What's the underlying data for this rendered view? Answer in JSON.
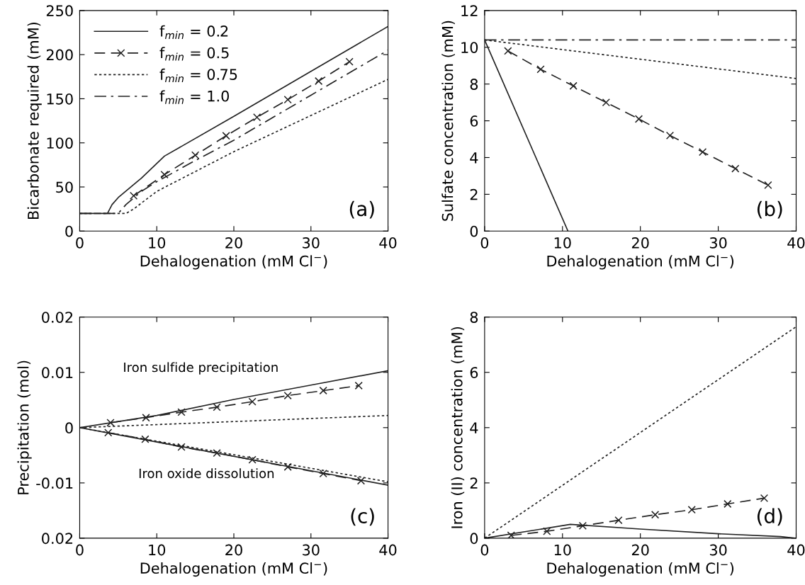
{
  "chart_data": [
    {
      "type": "line",
      "xlabel": "Dehalogenation (mM Cl$^{−}$)",
      "ylabel": "Bicarbonate required (mM)",
      "xlim": [
        0,
        40
      ],
      "ylim": [
        0,
        250
      ],
      "xticks": [
        0,
        10,
        20,
        30,
        40
      ],
      "yticks": [
        0,
        50,
        100,
        150,
        200,
        250
      ],
      "legend": "top left",
      "annotations": [
        "(a)"
      ],
      "series": [
        {
          "name": "f$_{min}$ = 0.2",
          "color": "#222222",
          "line_style": "solid",
          "marker": "none",
          "x": [
            0,
            3.6,
            4.2,
            5,
            8,
            11,
            20,
            30,
            40
          ],
          "values": [
            20,
            20,
            30,
            38,
            60,
            85,
            130,
            181,
            232
          ]
        },
        {
          "name": "f$_{min}$ = 0.5",
          "color": "#222222",
          "line_style": "dashed",
          "marker": "cross",
          "x": [
            7,
            11,
            15,
            19,
            23,
            27,
            31,
            35
          ],
          "values": [
            40,
            64,
            86,
            108,
            129,
            149,
            170,
            192
          ]
        },
        {
          "name": "f$_{min}$ = 0.75",
          "color": "#222222",
          "line_style": "dotted",
          "marker": "none",
          "x": [
            0,
            6,
            7,
            10,
            20,
            30,
            40
          ],
          "values": [
            20,
            20,
            25,
            45,
            90,
            131,
            172
          ]
        },
        {
          "name": "f$_{min}$ = 1.0",
          "color": "#222222",
          "line_style": "dashdot",
          "marker": "none",
          "x": [
            0,
            5,
            6,
            8,
            10,
            15,
            20,
            30,
            40
          ],
          "values": [
            20,
            20,
            30,
            45,
            56,
            80,
            103,
            154,
            205
          ]
        }
      ]
    },
    {
      "type": "line",
      "xlabel": "Dehalogenation (mM Cl$^{−}$)",
      "ylabel": "Sulfate concentration (mM)",
      "xlim": [
        0,
        40
      ],
      "ylim": [
        0,
        12
      ],
      "xticks": [
        0,
        10,
        20,
        30,
        40
      ],
      "yticks": [
        0,
        2,
        4,
        6,
        8,
        10,
        12
      ],
      "annotations": [
        "(b)"
      ],
      "series": [
        {
          "color": "#222222",
          "line_style": "solid",
          "marker": "none",
          "x": [
            0,
            10.7
          ],
          "values": [
            10.4,
            0
          ]
        },
        {
          "color": "#222222",
          "line_style": "dashed",
          "marker": "cross",
          "x": [
            3,
            7.2,
            11.4,
            15.6,
            19.8,
            23.8,
            28,
            32.2,
            36.4
          ],
          "values": [
            9.8,
            8.8,
            7.9,
            7.0,
            6.1,
            5.2,
            4.3,
            3.4,
            2.5
          ]
        },
        {
          "color": "#222222",
          "line_style": "dotted",
          "marker": "none",
          "x": [
            0,
            40
          ],
          "values": [
            10.4,
            8.3
          ]
        },
        {
          "color": "#222222",
          "line_style": "dashdot",
          "marker": "none",
          "x": [
            0,
            40
          ],
          "values": [
            10.4,
            10.4
          ]
        }
      ]
    },
    {
      "type": "line",
      "xlabel": "Dehalogenation (mM Cl$^{−}$)",
      "ylabel": "Precipitation (mol)",
      "xlim": [
        0,
        40
      ],
      "ylim": [
        -0.02,
        0.02
      ],
      "xticks": [
        0,
        10,
        20,
        30,
        40
      ],
      "yticks": [
        {
          "value": -0.02,
          "label": "0.02"
        },
        -0.01,
        0,
        0.01,
        0.02
      ],
      "annotations": [
        "(c)",
        "Iron sulfide precipitation",
        "Iron oxide dissolution"
      ],
      "series": [
        {
          "color": "#222222",
          "line_style": "solid",
          "marker": "none",
          "x": [
            0,
            10,
            20,
            30,
            40
          ],
          "values": [
            0,
            0.0022,
            0.0051,
            0.0077,
            0.0103
          ]
        },
        {
          "color": "#222222",
          "line_style": "dashed",
          "marker": "cross",
          "x": [
            4,
            8.6,
            13.2,
            17.8,
            22.4,
            27,
            31.6,
            36.2
          ],
          "values": [
            0.0009,
            0.0018,
            0.0028,
            0.0037,
            0.0047,
            0.0058,
            0.0067,
            0.0076
          ]
        },
        {
          "color": "#222222",
          "line_style": "dotted",
          "marker": "none",
          "x": [
            0,
            40
          ],
          "values": [
            0,
            0.0022
          ]
        },
        {
          "color": "#222222",
          "line_style": "solid",
          "marker": "none",
          "x": [
            0,
            40
          ],
          "values": [
            0,
            -0.0104
          ]
        },
        {
          "color": "#222222",
          "line_style": "dashed",
          "marker": "cross",
          "x": [
            3.7,
            8.5,
            13.2,
            17.8,
            22.4,
            27,
            31.6,
            36.5
          ],
          "values": [
            -0.0009,
            -0.0021,
            -0.0035,
            -0.0046,
            -0.0058,
            -0.0071,
            -0.0083,
            -0.0096
          ]
        },
        {
          "color": "#222222",
          "line_style": "dotted",
          "marker": "none",
          "x": [
            0,
            40
          ],
          "values": [
            0,
            -0.0098
          ]
        }
      ]
    },
    {
      "type": "line",
      "xlabel": "Dehalogenation (mM Cl$^{−}$)",
      "ylabel": "Iron (II) concentration (mM)",
      "xlim": [
        0,
        40
      ],
      "ylim": [
        0,
        8
      ],
      "xticks": [
        0,
        10,
        20,
        30,
        40
      ],
      "yticks": [
        0,
        2,
        4,
        6,
        8
      ],
      "annotations": [
        "(d)"
      ],
      "series": [
        {
          "color": "#222222",
          "line_style": "solid",
          "marker": "none",
          "x": [
            0,
            11,
            20,
            30,
            38,
            40
          ],
          "values": [
            0,
            0.5,
            0.33,
            0.16,
            0.06,
            0
          ]
        },
        {
          "color": "#222222",
          "line_style": "dashed",
          "marker": "cross",
          "x": [
            3.4,
            8,
            12.6,
            17.2,
            21.9,
            26.6,
            31.2,
            35.9
          ],
          "values": [
            0.1,
            0.25,
            0.45,
            0.65,
            0.85,
            1.03,
            1.24,
            1.45
          ]
        },
        {
          "color": "#222222",
          "line_style": "dotted",
          "marker": "none",
          "x": [
            0,
            40
          ],
          "values": [
            0,
            7.65
          ]
        }
      ]
    }
  ]
}
